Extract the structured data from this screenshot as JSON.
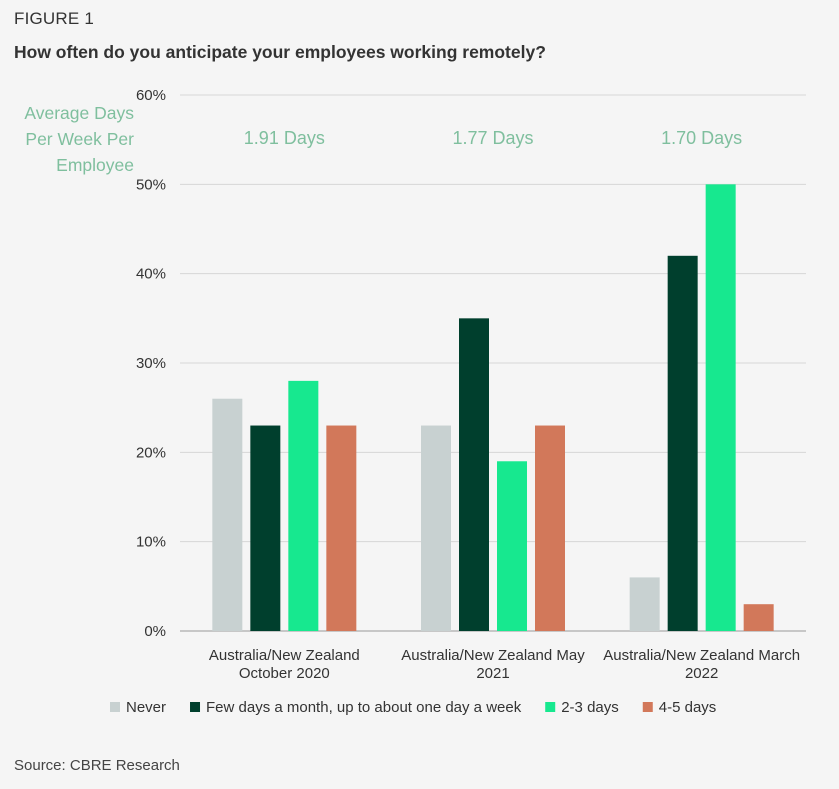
{
  "figure_label": "FIGURE 1",
  "source": "Source: CBRE Research",
  "chart_data": {
    "type": "bar",
    "title": "How often do you anticipate your employees working remotely?",
    "avg_label": "Average Days Per Week Per Employee",
    "categories": [
      [
        "Australia/New Zealand",
        "October 2020"
      ],
      [
        "Australia/New Zealand May",
        "2021"
      ],
      [
        "Australia/New Zealand March",
        "2022"
      ]
    ],
    "averages": [
      "1.91 Days",
      "1.77 Days",
      "1.70 Days"
    ],
    "series": [
      {
        "name": "Never",
        "color": "#c8d1d1",
        "values": [
          26,
          23,
          6
        ]
      },
      {
        "name": "Few days a month, up to about one day a week",
        "color": "#003f2d",
        "values": [
          23,
          35,
          42
        ]
      },
      {
        "name": "2-3 days",
        "color": "#17e88f",
        "values": [
          28,
          19,
          50
        ]
      },
      {
        "name": "4-5 days",
        "color": "#d2785a",
        "values": [
          23,
          23,
          3
        ]
      }
    ],
    "yticks": [
      "0%",
      "10%",
      "20%",
      "30%",
      "40%",
      "50%",
      "60%"
    ],
    "ylim": [
      0,
      60
    ],
    "grid": true,
    "legend_position": "bottom"
  }
}
